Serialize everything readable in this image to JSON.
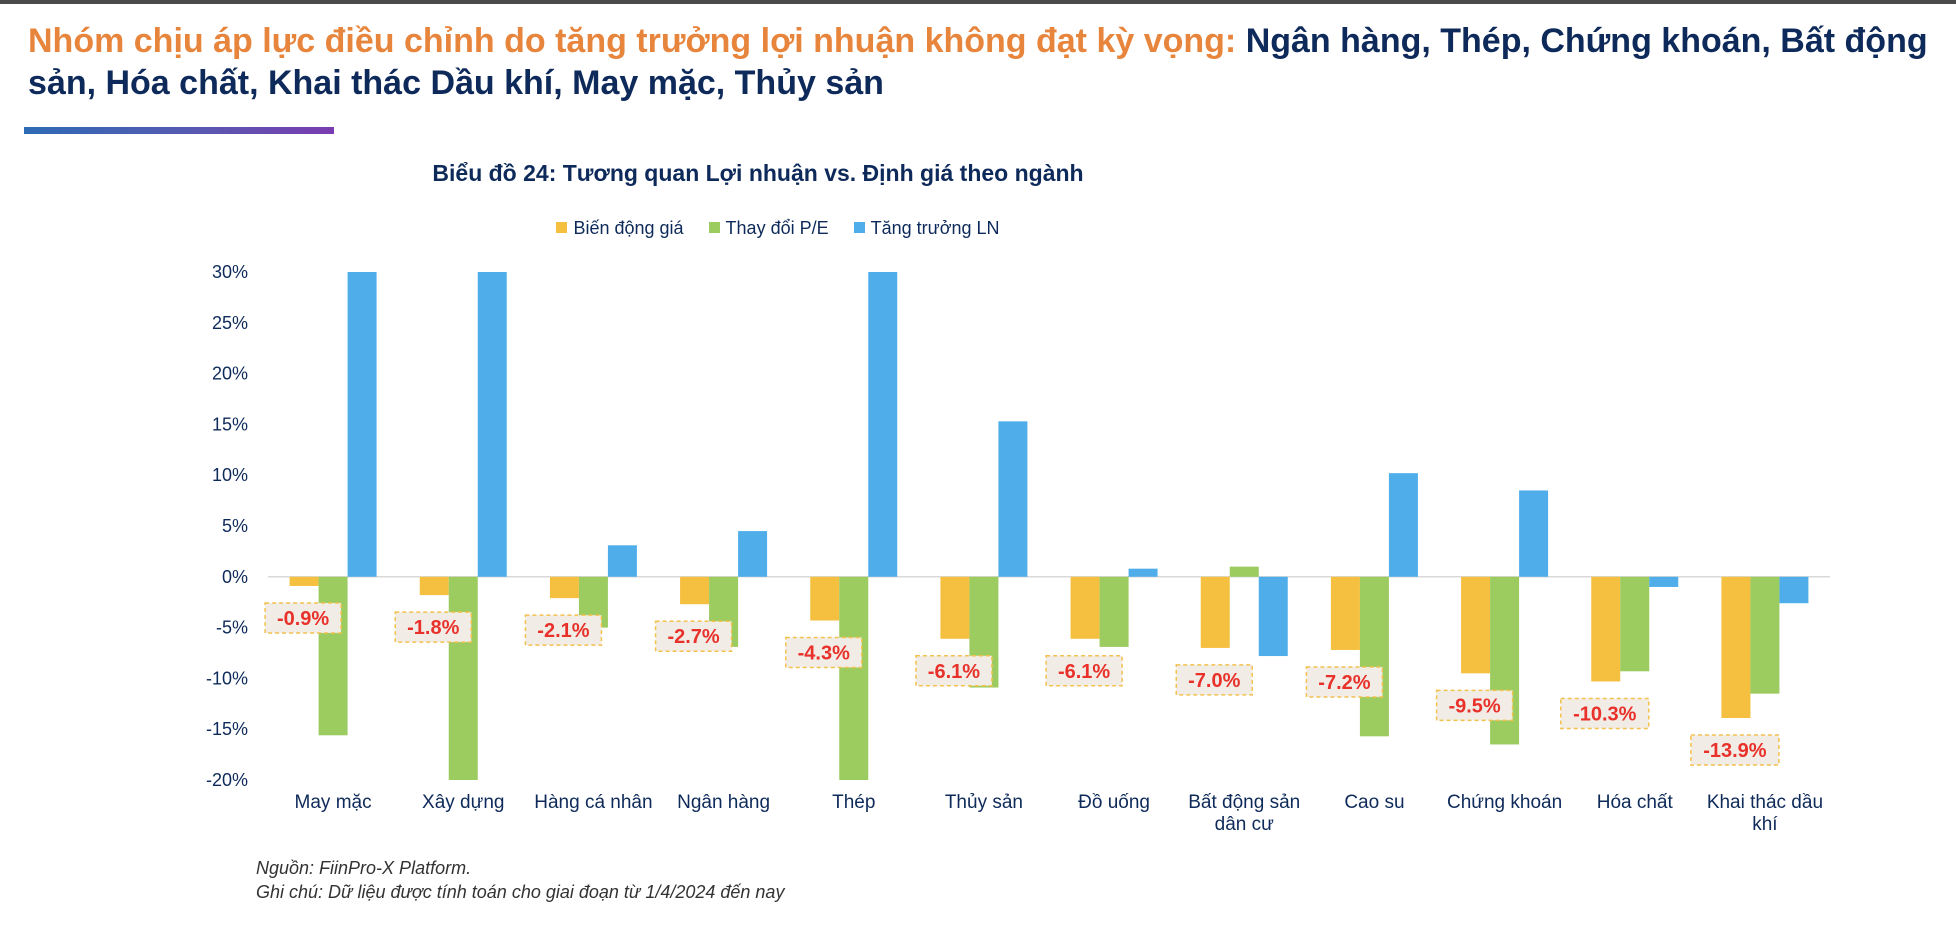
{
  "headline": {
    "lead": "Nhóm chịu áp lực điều chỉnh do tăng trưởng lợi nhuận không đạt kỳ vọng:",
    "rest": "Ngân hàng, Thép, Chứng khoán, Bất động sản, Hóa chất, Khai thác Dầu khí, May mặc, Thủy sản"
  },
  "footnotes": {
    "source": "Nguồn: FiinPro-X Platform.",
    "note": "Ghi chú: Dữ liệu được tính toán cho giai đoạn từ 1/4/2024 đến nay"
  },
  "colors": {
    "headline_accent": "#e8853d",
    "headline_dark": "#0e2a5a",
    "label_red": "#e8312a",
    "label_box_fill": "#f1ede6",
    "label_box_border": "#f2c14e"
  },
  "chart_data": {
    "type": "bar",
    "title": "Biểu đồ 24: Tương quan Lợi nhuận vs. Định giá theo ngành",
    "legend_position": "top",
    "grid": false,
    "ylim": [
      -20,
      30
    ],
    "y_ticks": [
      30,
      25,
      20,
      15,
      10,
      5,
      0,
      -5,
      -10,
      -15,
      -20
    ],
    "y_tick_suffix": "%",
    "categories": [
      [
        "May mặc"
      ],
      [
        "Xây dựng"
      ],
      [
        "Hàng cá nhân"
      ],
      [
        "Ngân hàng"
      ],
      [
        "Thép"
      ],
      [
        "Thủy sản"
      ],
      [
        "Đồ uống"
      ],
      [
        "Bất động sản",
        "dân cư"
      ],
      [
        "Cao su"
      ],
      [
        "Chứng khoán"
      ],
      [
        "Hóa chất"
      ],
      [
        "Khai thác dầu",
        "khí"
      ]
    ],
    "series": [
      {
        "name": "Biến động giá",
        "color": "#f5bf3f",
        "values": [
          -0.9,
          -1.8,
          -2.1,
          -2.7,
          -4.3,
          -6.1,
          -6.1,
          -7.0,
          -7.2,
          -9.5,
          -10.3,
          -13.9
        ],
        "data_labels": [
          "-0.9%",
          "-1.8%",
          "-2.1%",
          "-2.7%",
          "-4.3%",
          "-6.1%",
          "-6.1%",
          "-7.0%",
          "-7.2%",
          "-9.5%",
          "-10.3%",
          "-13.9%"
        ]
      },
      {
        "name": "Thay đổi P/E",
        "color": "#9ccb5f",
        "values": [
          -15.6,
          -20,
          -5.0,
          -6.9,
          -20,
          -10.9,
          -6.9,
          1.0,
          -15.7,
          -16.5,
          -9.3,
          -11.5
        ]
      },
      {
        "name": "Tăng trưởng LN",
        "color": "#4faeea",
        "values": [
          30,
          30,
          3.1,
          4.5,
          30,
          15.3,
          0.8,
          -7.8,
          10.2,
          8.5,
          -1.0,
          -2.6
        ]
      }
    ]
  }
}
